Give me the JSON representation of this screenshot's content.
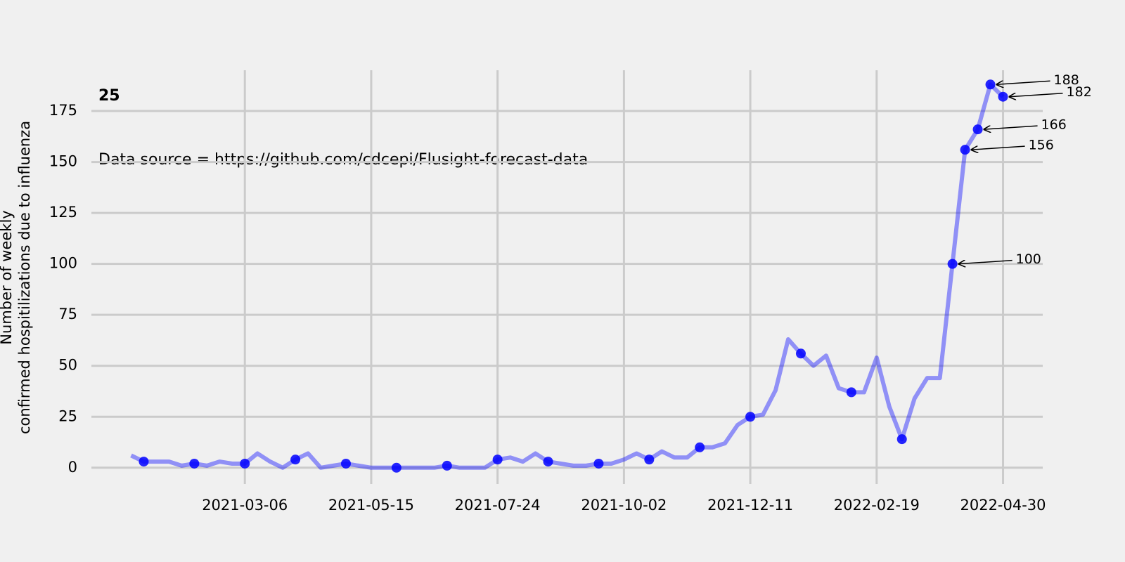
{
  "chart_data": {
    "type": "line",
    "label": "25",
    "annotation": "Data source = https://github.com/cdcepi/Flusight-forecast-data",
    "ylabel": [
      "Number of weekly",
      "confirmed hospitilizations due to influenza"
    ],
    "x": [
      "2021-01-02",
      "2021-01-09",
      "2021-01-16",
      "2021-01-23",
      "2021-01-30",
      "2021-02-06",
      "2021-02-13",
      "2021-02-20",
      "2021-02-27",
      "2021-03-06",
      "2021-03-13",
      "2021-03-20",
      "2021-03-27",
      "2021-04-03",
      "2021-04-10",
      "2021-04-17",
      "2021-04-24",
      "2021-05-01",
      "2021-05-08",
      "2021-05-15",
      "2021-05-22",
      "2021-05-29",
      "2021-06-05",
      "2021-06-12",
      "2021-06-19",
      "2021-06-26",
      "2021-07-03",
      "2021-07-10",
      "2021-07-17",
      "2021-07-24",
      "2021-07-31",
      "2021-08-07",
      "2021-08-14",
      "2021-08-21",
      "2021-08-28",
      "2021-09-04",
      "2021-09-11",
      "2021-09-18",
      "2021-09-25",
      "2021-10-02",
      "2021-10-09",
      "2021-10-16",
      "2021-10-23",
      "2021-10-30",
      "2021-11-06",
      "2021-11-13",
      "2021-11-20",
      "2021-11-27",
      "2021-12-04",
      "2021-12-11",
      "2021-12-18",
      "2021-12-25",
      "2022-01-01",
      "2022-01-08",
      "2022-01-15",
      "2022-01-22",
      "2022-01-29",
      "2022-02-05",
      "2022-02-12",
      "2022-02-19",
      "2022-02-26",
      "2022-03-05",
      "2022-03-12",
      "2022-03-19",
      "2022-03-26",
      "2022-04-02",
      "2022-04-09",
      "2022-04-16",
      "2022-04-23",
      "2022-04-30"
    ],
    "values": [
      6,
      3,
      3,
      3,
      1,
      2,
      1,
      3,
      2,
      2,
      7,
      3,
      0,
      4,
      7,
      0,
      1,
      2,
      1,
      0,
      0,
      0,
      0,
      0,
      0,
      1,
      0,
      0,
      0,
      4,
      5,
      3,
      7,
      3,
      2,
      1,
      1,
      2,
      2,
      4,
      7,
      4,
      8,
      5,
      5,
      10,
      10,
      12,
      21,
      25,
      26,
      38,
      63,
      56,
      50,
      55,
      39,
      37,
      37,
      54,
      30,
      14,
      34,
      44,
      44,
      100,
      156,
      166,
      188,
      182
    ],
    "color": "#0000ff",
    "points": {
      "x": [
        "2021-01-09",
        "2021-02-06",
        "2021-03-06",
        "2021-04-03",
        "2021-05-01",
        "2021-05-29",
        "2021-06-26",
        "2021-07-24",
        "2021-08-21",
        "2021-09-18",
        "2021-10-16",
        "2021-11-13",
        "2021-12-11",
        "2022-01-08",
        "2022-02-05",
        "2022-03-05",
        "2022-04-02",
        "2022-04-09",
        "2022-04-16",
        "2022-04-23",
        "2022-04-30"
      ],
      "values": [
        3,
        2,
        2,
        4,
        2,
        0,
        1,
        4,
        3,
        2,
        4,
        10,
        25,
        56,
        37,
        14,
        100,
        156,
        166,
        188,
        182
      ]
    },
    "callouts": [
      {
        "x": "2022-04-23",
        "value": 188,
        "label": "188"
      },
      {
        "x": "2022-04-30",
        "value": 182,
        "label": "182"
      },
      {
        "x": "2022-04-16",
        "value": 166,
        "label": "166"
      },
      {
        "x": "2022-04-09",
        "value": 156,
        "label": "156"
      },
      {
        "x": "2022-04-02",
        "value": 100,
        "label": "100"
      }
    ],
    "xlim": [
      "2020-12-11",
      "2022-05-22"
    ],
    "xticks": [
      "2021-03-06",
      "2021-05-15",
      "2021-07-24",
      "2021-10-02",
      "2021-12-11",
      "2022-02-19",
      "2022-04-30"
    ],
    "ylim": [
      -8,
      195
    ],
    "yticks": [
      0,
      25,
      50,
      75,
      100,
      125,
      150,
      175
    ],
    "grid": true
  }
}
